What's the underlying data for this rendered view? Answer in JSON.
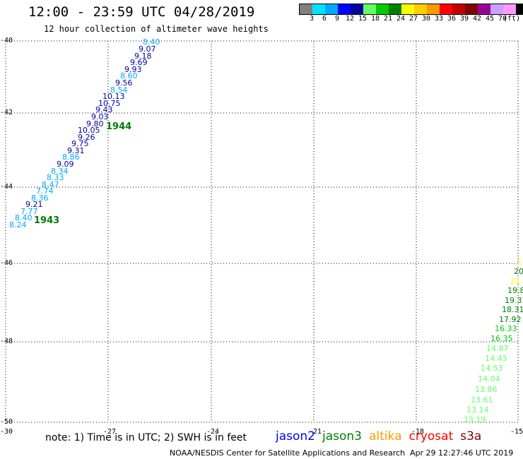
{
  "header": {
    "title": "12:00 - 23:59 UTC 04/28/2019",
    "subtitle": "12 hour collection of altimeter wave heights"
  },
  "legend": {
    "colors": [
      "#808080",
      "#00e5ff",
      "#00a9ff",
      "#0000ff",
      "#0000a0",
      "#66ff66",
      "#00cc00",
      "#008000",
      "#ffff00",
      "#ffd000",
      "#ff9900",
      "#ff0000",
      "#c00000",
      "#800000",
      "#990099",
      "#c9a0ff",
      "#ff99ff",
      "#000000"
    ],
    "labels": [
      "3",
      "6",
      "9",
      "12",
      "15",
      "18",
      "21",
      "24",
      "27",
      "30",
      "33",
      "36",
      "39",
      "42",
      "45",
      "70"
    ],
    "unit": "(ft)"
  },
  "axes": {
    "lat_labels": [
      "-40",
      "-42",
      "-44",
      "-46",
      "-48",
      "-50"
    ],
    "lon_labels": [
      "-30",
      "-27",
      "-24",
      "-21",
      "-18",
      "-15"
    ]
  },
  "measurements": [
    {
      "v": "8.40",
      "c": "#00a9ff"
    },
    {
      "v": "9.07",
      "c": "#0000a0"
    },
    {
      "v": "9.18",
      "c": "#0000a0"
    },
    {
      "v": "9.69",
      "c": "#0000a0"
    },
    {
      "v": "9.93",
      "c": "#0000a0"
    },
    {
      "v": "8.60",
      "c": "#00a9ff"
    },
    {
      "v": "9.56",
      "c": "#0000a0"
    },
    {
      "v": "8.54",
      "c": "#00a9ff"
    },
    {
      "v": "10.13",
      "c": "#0000a0"
    },
    {
      "v": "10.75",
      "c": "#0000a0"
    },
    {
      "v": "9.43",
      "c": "#0000a0"
    },
    {
      "v": "9.03",
      "c": "#0000a0"
    },
    {
      "v": "9.80",
      "c": "#0000a0"
    },
    {
      "v": "10.05",
      "c": "#0000a0"
    },
    {
      "v": "9.26",
      "c": "#0000a0"
    },
    {
      "v": "9.75",
      "c": "#0000a0"
    },
    {
      "v": "9.31",
      "c": "#0000a0"
    },
    {
      "v": "8.86",
      "c": "#00a9ff"
    },
    {
      "v": "9.09",
      "c": "#0000a0"
    },
    {
      "v": "8.34",
      "c": "#00a9ff"
    },
    {
      "v": "8.33",
      "c": "#00a9ff"
    },
    {
      "v": "8.47",
      "c": "#00a9ff"
    },
    {
      "v": "7.74",
      "c": "#00a9ff"
    },
    {
      "v": "8.36",
      "c": "#00a9ff"
    },
    {
      "v": "9.21",
      "c": "#0000a0"
    },
    {
      "v": "7.77",
      "c": "#00a9ff"
    },
    {
      "v": "8.40",
      "c": "#00a9ff"
    },
    {
      "v": "8.24",
      "c": "#00a9ff"
    },
    {
      "v": "2",
      "c": "#ffff00"
    },
    {
      "v": "20",
      "c": "#008000"
    },
    {
      "v": "21.",
      "c": "#ffff00"
    },
    {
      "v": "19.8",
      "c": "#008000"
    },
    {
      "v": "19.37",
      "c": "#008000"
    },
    {
      "v": "18.31",
      "c": "#008000"
    },
    {
      "v": "17.92",
      "c": "#008000"
    },
    {
      "v": "16.33",
      "c": "#00cc00"
    },
    {
      "v": "16.35",
      "c": "#00cc00"
    },
    {
      "v": "14.87",
      "c": "#66ff66"
    },
    {
      "v": "14.43",
      "c": "#66ff66"
    },
    {
      "v": "14.53",
      "c": "#66ff66"
    },
    {
      "v": "14.04",
      "c": "#66ff66"
    },
    {
      "v": "13.86",
      "c": "#66ff66"
    },
    {
      "v": "13.61",
      "c": "#66ff66"
    },
    {
      "v": "13.14",
      "c": "#66ff66"
    },
    {
      "v": "13.19",
      "c": "#66ff66"
    }
  ],
  "pass_times": [
    "1944",
    "1943"
  ],
  "footer": {
    "note": "note: 1) Time is in UTC; 2) SWH is in feet",
    "satellites": [
      {
        "name": "jason2",
        "color": "#0000ff"
      },
      {
        "name": "jason3",
        "color": "#008000"
      },
      {
        "name": "altika",
        "color": "#ff9900"
      },
      {
        "name": "cryosat",
        "color": "#ff0000"
      },
      {
        "name": "s3a",
        "color": "#800000"
      }
    ],
    "credit": "NOAA/NESDIS Center for Satellite Applications and Research",
    "timestamp": "Apr 29 12:27:46 UTC 2019"
  }
}
